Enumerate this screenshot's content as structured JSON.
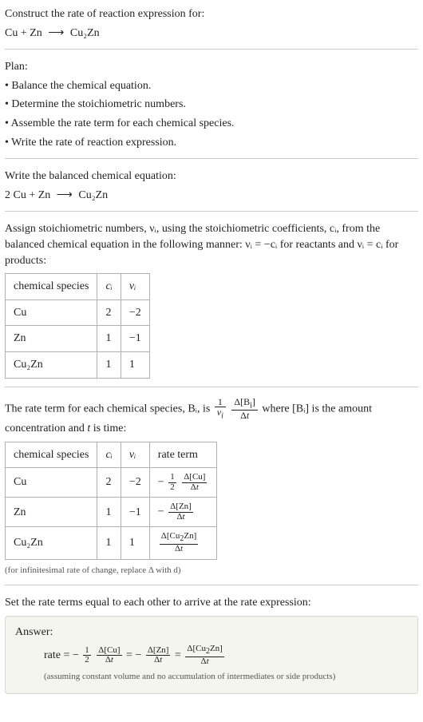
{
  "header": {
    "prompt": "Construct the rate of reaction expression for:",
    "equation_left": "Cu + Zn",
    "equation_right": "Cu₂Zn"
  },
  "plan": {
    "title": "Plan:",
    "items": [
      "Balance the chemical equation.",
      "Determine the stoichiometric numbers.",
      "Assemble the rate term for each chemical species.",
      "Write the rate of reaction expression."
    ]
  },
  "balanced": {
    "title": "Write the balanced chemical equation:",
    "equation_left": "2 Cu + Zn",
    "equation_right": "Cu₂Zn"
  },
  "stoich_intro": "Assign stoichiometric numbers, νᵢ, using the stoichiometric coefficients, cᵢ, from the balanced chemical equation in the following manner: νᵢ = −cᵢ for reactants and νᵢ = cᵢ for products:",
  "stoich_table": {
    "headers": [
      "chemical species",
      "cᵢ",
      "νᵢ"
    ],
    "rows": [
      {
        "species": "Cu",
        "c": "2",
        "v": "−2"
      },
      {
        "species": "Zn",
        "c": "1",
        "v": "−1"
      },
      {
        "species": "Cu₂Zn",
        "c": "1",
        "v": "1"
      }
    ]
  },
  "rate_intro_a": "The rate term for each chemical species, Bᵢ, is ",
  "rate_intro_b": " where [Bᵢ] is the amount concentration and ",
  "rate_intro_c": " is time:",
  "rate_table": {
    "headers": [
      "chemical species",
      "cᵢ",
      "νᵢ",
      "rate term"
    ],
    "rows": [
      {
        "species": "Cu",
        "c": "2",
        "v": "−2"
      },
      {
        "species": "Zn",
        "c": "1",
        "v": "−1"
      },
      {
        "species": "Cu₂Zn",
        "c": "1",
        "v": "1"
      }
    ]
  },
  "rate_footnote": "(for infinitesimal rate of change, replace Δ with d)",
  "final_intro": "Set the rate terms equal to each other to arrive at the rate expression:",
  "answer": {
    "title": "Answer:",
    "note": "(assuming constant volume and no accumulation of intermediates or side products)"
  },
  "glyphs": {
    "arrow": "⟶",
    "bullet": "•",
    "minus": "−",
    "t": "t"
  }
}
